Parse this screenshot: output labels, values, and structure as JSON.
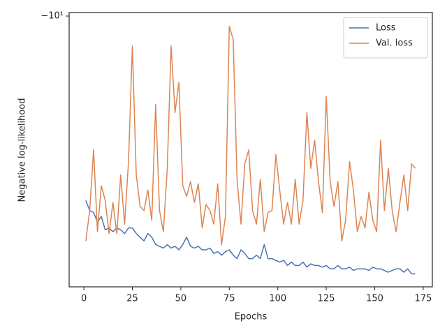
{
  "chart_data": {
    "type": "line",
    "xlabel": "Epochs",
    "ylabel": "Negative log-likelihood",
    "yscale": "symlog",
    "legend": "upper right",
    "grid": false,
    "xlim": [
      -7.6,
      179.7
    ],
    "xticks": [
      0,
      25,
      50,
      75,
      100,
      125,
      150,
      175
    ],
    "ylim": [
      -9.9,
      -21.8
    ],
    "yticks": [
      {
        "value": -10,
        "label": "−10¹"
      }
    ],
    "x": [
      1,
      3,
      5,
      7,
      9,
      11,
      13,
      15,
      17,
      19,
      21,
      23,
      25,
      27,
      29,
      31,
      33,
      35,
      37,
      39,
      41,
      43,
      45,
      47,
      49,
      51,
      53,
      55,
      57,
      59,
      61,
      63,
      65,
      67,
      69,
      71,
      73,
      75,
      77,
      79,
      81,
      83,
      85,
      87,
      89,
      91,
      93,
      95,
      97,
      99,
      101,
      103,
      105,
      107,
      109,
      111,
      113,
      115,
      117,
      119,
      121,
      123,
      125,
      127,
      129,
      131,
      133,
      135,
      137,
      139,
      141,
      143,
      145,
      147,
      149,
      151,
      153,
      155,
      157,
      159,
      161,
      163,
      165,
      167,
      169,
      171
    ],
    "series": [
      {
        "name": "Loss",
        "color": "#4c72b0",
        "values": [
          -17.0,
          -17.5,
          -17.6,
          -18.1,
          -17.8,
          -18.5,
          -18.4,
          -18.6,
          -18.4,
          -18.5,
          -18.7,
          -18.4,
          -18.4,
          -18.7,
          -18.9,
          -19.1,
          -18.7,
          -18.9,
          -19.3,
          -19.4,
          -19.5,
          -19.3,
          -19.5,
          -19.4,
          -19.6,
          -19.3,
          -18.9,
          -19.4,
          -19.5,
          -19.4,
          -19.6,
          -19.6,
          -19.5,
          -19.8,
          -19.7,
          -19.9,
          -19.7,
          -19.6,
          -19.9,
          -20.1,
          -19.6,
          -19.8,
          -20.1,
          -20.1,
          -19.9,
          -20.1,
          -19.3,
          -20.1,
          -20.1,
          -20.2,
          -20.3,
          -20.2,
          -20.5,
          -20.3,
          -20.5,
          -20.5,
          -20.3,
          -20.6,
          -20.4,
          -20.5,
          -20.5,
          -20.6,
          -20.5,
          -20.7,
          -20.7,
          -20.5,
          -20.7,
          -20.7,
          -20.6,
          -20.8,
          -20.7,
          -20.7,
          -20.7,
          -20.8,
          -20.6,
          -20.7,
          -20.7,
          -20.8,
          -20.9,
          -20.8,
          -20.7,
          -20.7,
          -20.9,
          -20.7,
          -21.0,
          -21.0
        ]
      },
      {
        "name": "Val. loss",
        "color": "#dd8452",
        "values": [
          -19.1,
          -17.5,
          -14.7,
          -18.6,
          -16.3,
          -17.0,
          -18.7,
          -17.1,
          -18.7,
          -15.8,
          -18.2,
          -15.2,
          -10.9,
          -15.8,
          -17.3,
          -17.5,
          -16.5,
          -18.0,
          -12.9,
          -17.5,
          -18.6,
          -15.5,
          -10.9,
          -13.2,
          -12.1,
          -16.3,
          -16.8,
          -16.1,
          -17.1,
          -16.2,
          -18.4,
          -17.2,
          -17.5,
          -18.2,
          -16.2,
          -19.3,
          -17.8,
          -10.3,
          -10.7,
          -16.0,
          -18.2,
          -15.3,
          -14.7,
          -17.5,
          -18.2,
          -16.0,
          -18.6,
          -17.6,
          -17.5,
          -14.9,
          -16.5,
          -18.2,
          -17.1,
          -18.2,
          -16.0,
          -18.2,
          -17.0,
          -13.2,
          -15.5,
          -14.3,
          -16.1,
          -17.6,
          -12.6,
          -16.1,
          -17.3,
          -16.1,
          -19.1,
          -18.0,
          -15.2,
          -16.5,
          -18.6,
          -17.8,
          -18.4,
          -16.6,
          -18.0,
          -18.6,
          -14.3,
          -17.5,
          -15.5,
          -17.5,
          -18.6,
          -17.1,
          -15.8,
          -17.5,
          -15.3,
          -15.5
        ]
      }
    ]
  }
}
